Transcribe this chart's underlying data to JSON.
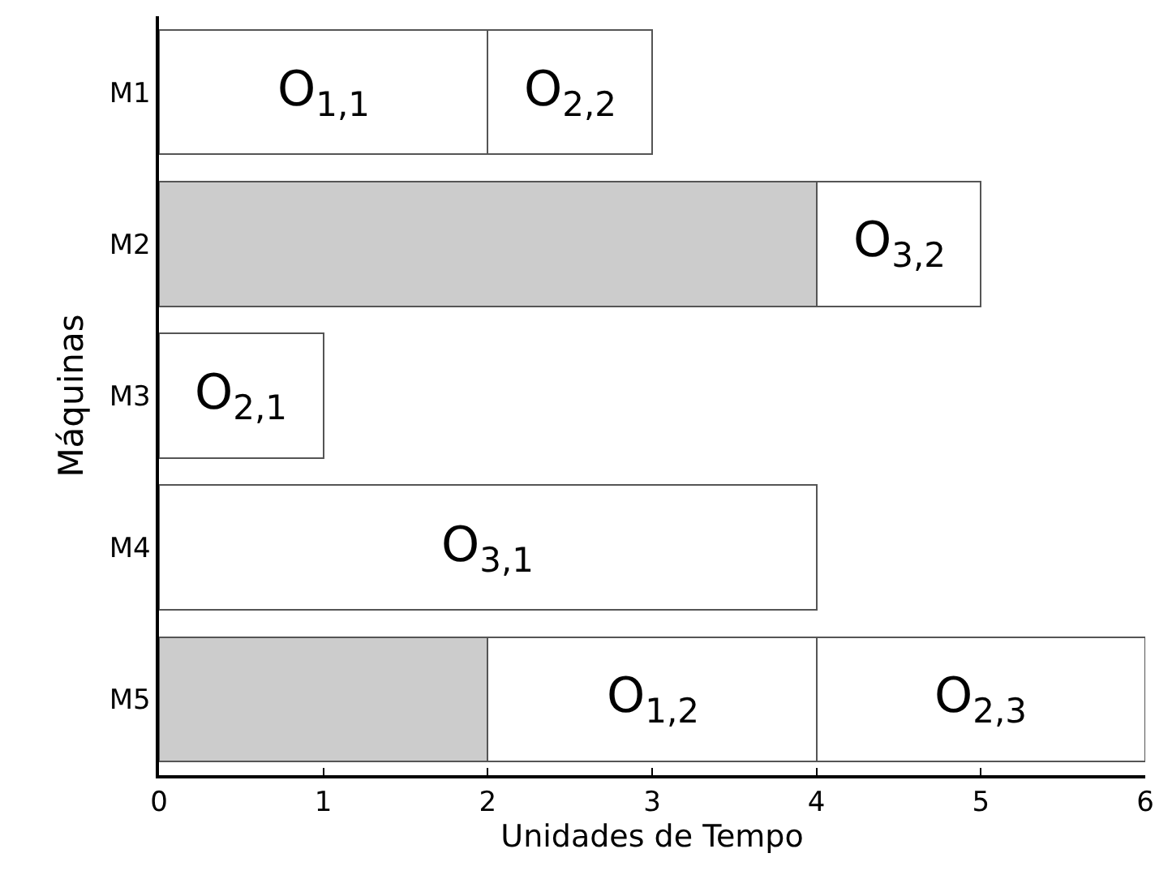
{
  "chart_data": {
    "type": "bar",
    "orientation": "horizontal",
    "stacked": true,
    "xlabel": "Unidades de Tempo",
    "ylabel": "Máquinas",
    "categories": [
      "M1",
      "M2",
      "M3",
      "M4",
      "M5"
    ],
    "xlim": [
      0,
      6
    ],
    "xticks": [
      0,
      1,
      2,
      3,
      4,
      5,
      6
    ],
    "grid": false,
    "series": [
      {
        "color": "#cccccc",
        "values": [
          null,
          4,
          null,
          null,
          2
        ]
      },
      {
        "color": "#ffffff",
        "values": [
          2,
          null,
          1,
          4,
          2
        ]
      },
      {
        "color": "#ffffff",
        "values": [
          1,
          1,
          null,
          null,
          2
        ]
      }
    ],
    "annotations": [
      {
        "text": "O$_{1,1}$",
        "x": 1,
        "y": "M1"
      },
      {
        "text": "O$_{2,2}$",
        "x": 2.5,
        "y": "M1"
      },
      {
        "text": "O$_{3,2}$",
        "x": 4.5,
        "y": "M2"
      },
      {
        "text": "O$_{2,1}$",
        "x": 0.5,
        "y": "M3"
      },
      {
        "text": "O$_{3,1}$",
        "x": 2,
        "y": "M4"
      },
      {
        "text": "O$_{1,2}$",
        "x": 3,
        "y": "M5"
      },
      {
        "text": "O$_{2,3}$",
        "x": 5,
        "y": "M5"
      }
    ]
  }
}
